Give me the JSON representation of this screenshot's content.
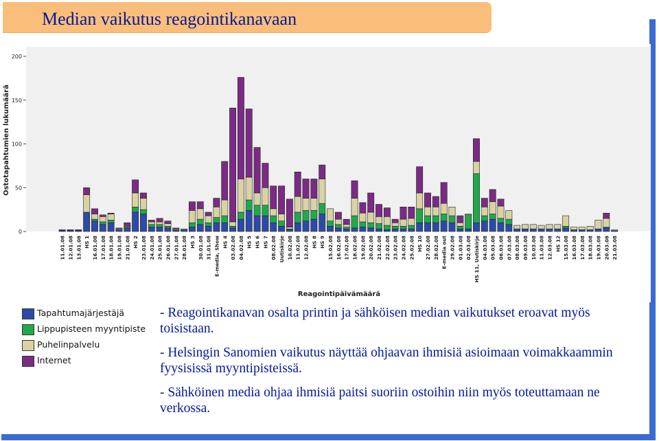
{
  "slide": {
    "title": "Median vaikutus reagointikanavaan"
  },
  "notes": [
    "- Reagointikanavan osalta printin ja sähköisen median vaikutukset eroavat myös toisistaan.",
    "- Helsingin Sanomien vaikutus näyttää ohjaavan ihmisiä asioimaan voimakkaammin fyysisissä myyntipisteissä.",
    "- Sähköinen media ohjaa ihmisiä paitsi suoriin ostoihin niin myös toteuttamaan ne verkossa."
  ],
  "colors": {
    "title_bg": "#fbbd7a",
    "title_text": "#001a99",
    "frame": "#3a6bd0",
    "plot_bg": "#f0f0f0"
  },
  "chart_data": {
    "type": "bar",
    "stacked": true,
    "xlabel": "Reagointipäivämäärä",
    "ylabel": "Ostotapahtumien lukumäärä",
    "ylim": [
      0,
      200
    ],
    "yticks": [
      0,
      50,
      100,
      150,
      200
    ],
    "grid": false,
    "legend": "bottom-left",
    "categories": [
      "11.01.08",
      "12.01.08",
      "13.01.08",
      "HS 1",
      "16.01.08",
      "17.01.08",
      "18.01.08",
      "19.01.08",
      "21.01.08",
      "HS 2",
      "23.01.08",
      "24.01.08",
      "25.01.08",
      "26.01.08",
      "27.01.08",
      "28.01.08",
      "HS 3",
      "30.01.08",
      "31.01.08",
      "E-media, Show",
      "HS 4",
      "03.02.08",
      "04.02.08",
      "HS 5",
      "HS 6",
      "HS 7",
      "08.02.08",
      "Uutiskirje",
      "10.02.08",
      "11.02.08",
      "12.02.08",
      "HS 8",
      "HS 9",
      "15.02.08",
      "16.02.08",
      "17.02.08",
      "18.02.08",
      "19.02.08",
      "20.02.08",
      "21.02.08",
      "22.02.08",
      "23.02.08",
      "24.02.08",
      "25.02.08",
      "HS 10",
      "27.02.08",
      "28.02.08",
      "E-media out",
      "29.02.08",
      "01.03.08",
      "02.03.08",
      "HS 11, Uutiskirje",
      "04.03.08",
      "05.03.08",
      "06.03.08",
      "07.03.08",
      "08.03.08",
      "09.03.08",
      "10.03.08",
      "11.03.08",
      "12.03.08",
      "HS 12",
      "15.03.08",
      "16.03.08",
      "17.03.08",
      "18.03.08",
      "19.03.08",
      "20.03.08",
      "21.03.08"
    ],
    "series": [
      {
        "name": "Tapahtumajärjestäjä",
        "color": "#2d4aa8",
        "values": [
          1,
          1,
          1,
          22,
          12,
          8,
          10,
          2,
          4,
          22,
          20,
          5,
          5,
          4,
          2,
          2,
          5,
          8,
          6,
          10,
          10,
          4,
          14,
          24,
          18,
          18,
          10,
          6,
          2,
          10,
          12,
          14,
          20,
          6,
          4,
          3,
          4,
          5,
          4,
          3,
          2,
          3,
          3,
          3,
          10,
          10,
          10,
          12,
          10,
          3,
          3,
          10,
          12,
          14,
          10,
          8,
          3,
          3,
          3,
          3,
          3,
          3,
          4,
          2,
          2,
          2,
          3,
          4,
          1
        ]
      },
      {
        "name": "Lippupisteen myyntipiste",
        "color": "#21a84a",
        "values": [
          0,
          0,
          0,
          0,
          2,
          3,
          3,
          0,
          1,
          6,
          5,
          3,
          3,
          2,
          0,
          0,
          5,
          6,
          4,
          6,
          8,
          2,
          8,
          12,
          12,
          12,
          8,
          6,
          1,
          12,
          12,
          10,
          12,
          6,
          4,
          2,
          14,
          6,
          6,
          6,
          5,
          3,
          3,
          4,
          16,
          8,
          8,
          8,
          8,
          3,
          16,
          56,
          6,
          6,
          5,
          6,
          0,
          0,
          0,
          0,
          0,
          0,
          2,
          0,
          0,
          0,
          0,
          1,
          0
        ]
      },
      {
        "name": "Puhelinpalvelu",
        "color": "#d9d3a4",
        "values": [
          0,
          0,
          0,
          20,
          6,
          6,
          7,
          1,
          1,
          16,
          13,
          3,
          3,
          3,
          1,
          1,
          14,
          12,
          8,
          12,
          18,
          5,
          38,
          26,
          14,
          20,
          8,
          8,
          2,
          18,
          14,
          14,
          28,
          14,
          6,
          3,
          20,
          10,
          12,
          8,
          10,
          4,
          8,
          8,
          18,
          10,
          10,
          12,
          10,
          4,
          1,
          14,
          10,
          14,
          14,
          10,
          4,
          5,
          5,
          4,
          5,
          5,
          12,
          3,
          3,
          4,
          10,
          10,
          1
        ]
      },
      {
        "name": "Internet",
        "color": "#7b2b84",
        "values": [
          1,
          1,
          1,
          8,
          6,
          2,
          1,
          1,
          4,
          15,
          6,
          2,
          4,
          3,
          1,
          0,
          10,
          8,
          4,
          10,
          44,
          130,
          116,
          78,
          52,
          28,
          26,
          32,
          32,
          28,
          22,
          22,
          16,
          0,
          8,
          6,
          20,
          12,
          22,
          14,
          10,
          4,
          14,
          13,
          30,
          16,
          12,
          24,
          0,
          8,
          0,
          26,
          10,
          14,
          8,
          0,
          0,
          0,
          0,
          0,
          0,
          0,
          0,
          0,
          0,
          0,
          0,
          6,
          0
        ]
      }
    ]
  }
}
